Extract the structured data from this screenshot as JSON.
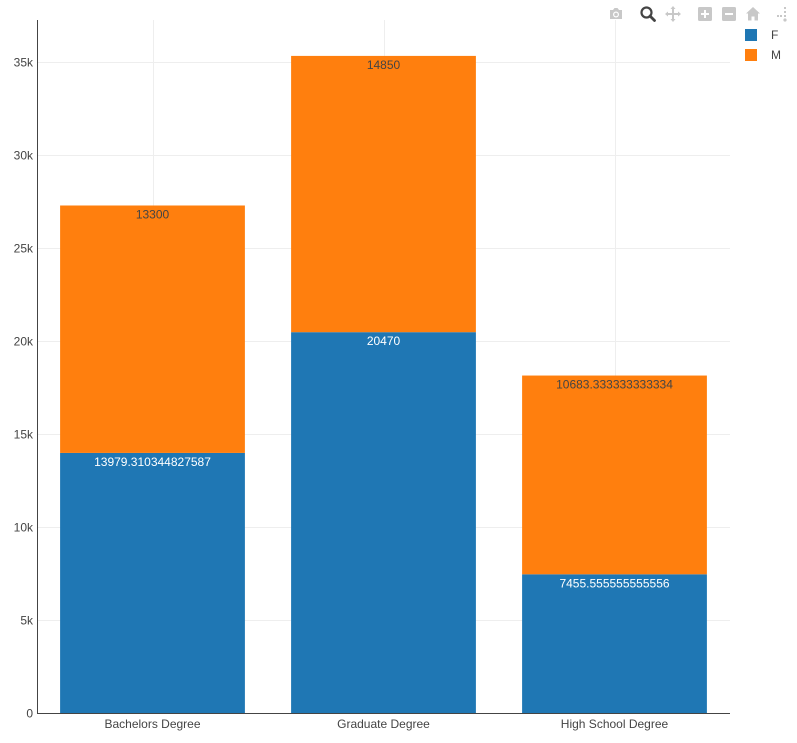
{
  "chart_data": {
    "type": "bar",
    "stacked": true,
    "title": "",
    "xlabel": "",
    "ylabel": "",
    "categories": [
      "Bachelors Degree",
      "Graduate Degree",
      "High School Degree"
    ],
    "series": [
      {
        "name": "F",
        "color": "#1f77b4",
        "values": [
          13979.310344827587,
          20470,
          7455.555555555556
        ],
        "labels": [
          "13979.310344827587",
          "20470",
          "7455.555555555556"
        ],
        "label_color": "#ffffff"
      },
      {
        "name": "M",
        "color": "#ff7f0e",
        "values": [
          13300,
          14850,
          10683.333333333334
        ],
        "labels": [
          "13300",
          "14850",
          "10683.333333333334"
        ],
        "label_color": "#444444"
      }
    ],
    "ylim": [
      0,
      37250
    ],
    "yticks": [
      0,
      5000,
      10000,
      15000,
      20000,
      25000,
      30000,
      35000
    ],
    "ytick_labels": [
      "0",
      "5k",
      "10k",
      "15k",
      "20k",
      "25k",
      "30k",
      "35k"
    ],
    "grid": true,
    "legend": "top-right"
  },
  "modebar": {
    "buttons": [
      {
        "name": "camera-icon",
        "title": "Download plot as a png"
      },
      {
        "name": "zoom-icon",
        "title": "Zoom"
      },
      {
        "name": "pan-icon",
        "title": "Pan"
      },
      {
        "name": "zoom-in-icon",
        "title": "Zoom in"
      },
      {
        "name": "zoom-out-icon",
        "title": "Zoom out"
      },
      {
        "name": "home-icon",
        "title": "Reset axes"
      },
      {
        "name": "spike-lines-icon",
        "title": "Toggle Spike Lines"
      }
    ],
    "active_color": "#444444",
    "idle_color": "#c8c8c8"
  }
}
